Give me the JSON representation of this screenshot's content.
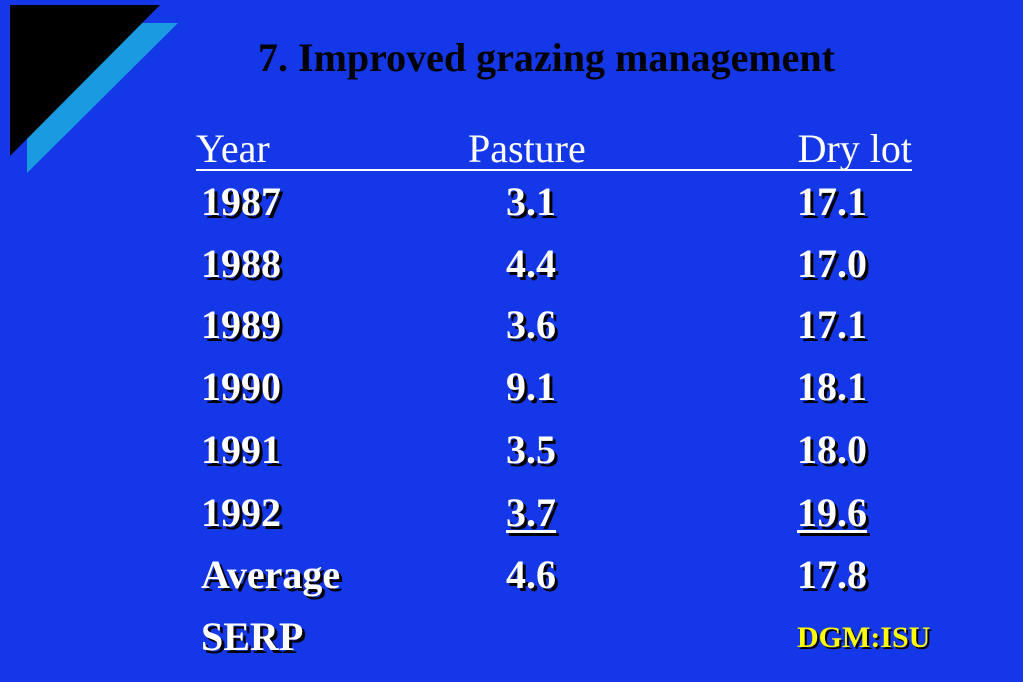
{
  "slide": {
    "title": "7. Improved grazing management",
    "colors": {
      "background": "#1438e8",
      "title_text": "#000000",
      "body_text": "#ffffff",
      "credit_text": "#ffff00",
      "decoration_dark": "#000000",
      "decoration_light": "#1a9ae0"
    }
  },
  "table": {
    "headers": {
      "year": "Year",
      "pasture": "Pasture",
      "drylot": "Dry lot"
    },
    "rows": [
      {
        "year": "1987",
        "pasture": "3.1",
        "drylot": "17.1"
      },
      {
        "year": "1988",
        "pasture": "4.4",
        "drylot": "17.0"
      },
      {
        "year": "1989",
        "pasture": "3.6",
        "drylot": "17.1"
      },
      {
        "year": "1990",
        "pasture": "9.1",
        "drylot": "18.1"
      },
      {
        "year": "1991",
        "pasture": "3.5",
        "drylot": "18.0"
      },
      {
        "year": "1992",
        "pasture": "3.7",
        "drylot": "19.6"
      }
    ],
    "average": {
      "label": "Average",
      "pasture": "4.6",
      "drylot": "17.8"
    },
    "source": "SERP"
  },
  "footer": {
    "credit": "DGM:ISU"
  }
}
